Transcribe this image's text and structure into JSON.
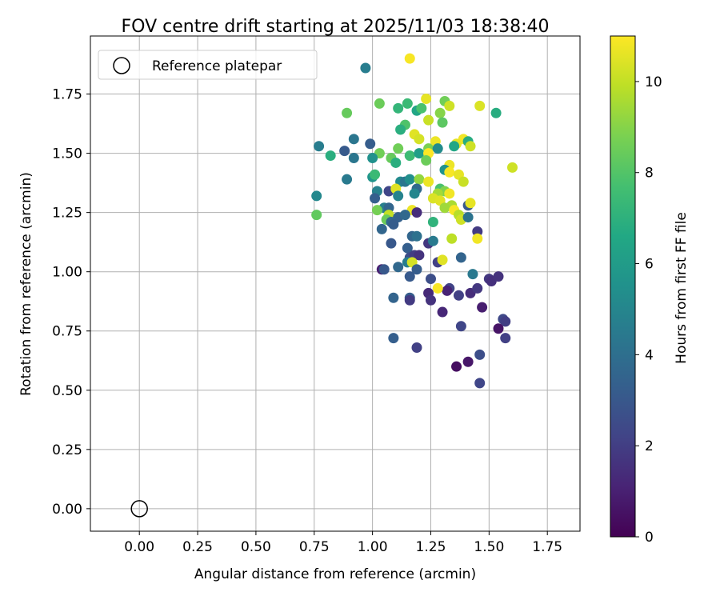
{
  "chart_data": {
    "type": "scatter",
    "title": "FOV centre drift starting at 2025/11/03 18:38:40",
    "xlabel": "Angular distance from reference (arcmin)",
    "ylabel": "Rotation from reference (arcmin)",
    "xlim": [
      -0.21,
      1.89
    ],
    "ylim": [
      -0.095,
      1.995
    ],
    "xticks": [
      "0.00",
      "0.25",
      "0.50",
      "0.75",
      "1.00",
      "1.25",
      "1.50",
      "1.75"
    ],
    "yticks": [
      "0.00",
      "0.25",
      "0.50",
      "0.75",
      "1.00",
      "1.25",
      "1.50",
      "1.75"
    ],
    "grid": true,
    "legend": {
      "location": "upper-left",
      "entries": [
        "Reference platepar"
      ]
    },
    "reference_point": {
      "x": 0.0,
      "y": 0.0
    },
    "colorbar": {
      "label": "Hours from first FF file",
      "min": 0,
      "max": 11,
      "ticks": [
        "0",
        "2",
        "4",
        "6",
        "8",
        "10"
      ],
      "colormap": "viridis"
    },
    "points": [
      {
        "x": 1.16,
        "y": 1.9,
        "h": 10.9
      },
      {
        "x": 0.97,
        "y": 1.86,
        "h": 4.6
      },
      {
        "x": 1.23,
        "y": 1.73,
        "h": 10.6
      },
      {
        "x": 1.46,
        "y": 1.7,
        "h": 10.4
      },
      {
        "x": 1.03,
        "y": 1.71,
        "h": 8.5
      },
      {
        "x": 1.15,
        "y": 1.71,
        "h": 7.4
      },
      {
        "x": 1.11,
        "y": 1.69,
        "h": 7.2
      },
      {
        "x": 1.31,
        "y": 1.72,
        "h": 8.6
      },
      {
        "x": 1.53,
        "y": 1.67,
        "h": 6.8
      },
      {
        "x": 0.89,
        "y": 1.67,
        "h": 8.4
      },
      {
        "x": 1.19,
        "y": 1.68,
        "h": 6.5
      },
      {
        "x": 1.29,
        "y": 1.67,
        "h": 9.0
      },
      {
        "x": 1.33,
        "y": 1.7,
        "h": 10.2
      },
      {
        "x": 1.21,
        "y": 1.69,
        "h": 7.8
      },
      {
        "x": 1.24,
        "y": 1.64,
        "h": 10.1
      },
      {
        "x": 1.3,
        "y": 1.63,
        "h": 8.2
      },
      {
        "x": 1.14,
        "y": 1.62,
        "h": 7.9
      },
      {
        "x": 1.12,
        "y": 1.6,
        "h": 6.9
      },
      {
        "x": 1.18,
        "y": 1.58,
        "h": 10.5
      },
      {
        "x": 1.2,
        "y": 1.56,
        "h": 10.3
      },
      {
        "x": 0.92,
        "y": 1.56,
        "h": 4.3
      },
      {
        "x": 1.27,
        "y": 1.55,
        "h": 10.7
      },
      {
        "x": 1.39,
        "y": 1.56,
        "h": 10.8
      },
      {
        "x": 1.41,
        "y": 1.55,
        "h": 6.8
      },
      {
        "x": 0.77,
        "y": 1.53,
        "h": 4.6
      },
      {
        "x": 0.99,
        "y": 1.54,
        "h": 3.2
      },
      {
        "x": 1.36,
        "y": 1.54,
        "h": 10.6
      },
      {
        "x": 1.11,
        "y": 1.52,
        "h": 8.6
      },
      {
        "x": 1.24,
        "y": 1.52,
        "h": 8.8
      },
      {
        "x": 1.28,
        "y": 1.52,
        "h": 5.3
      },
      {
        "x": 1.35,
        "y": 1.53,
        "h": 6.5
      },
      {
        "x": 1.42,
        "y": 1.53,
        "h": 10.2
      },
      {
        "x": 0.88,
        "y": 1.51,
        "h": 3.1
      },
      {
        "x": 1.03,
        "y": 1.5,
        "h": 8.6
      },
      {
        "x": 0.82,
        "y": 1.49,
        "h": 6.9
      },
      {
        "x": 1.16,
        "y": 1.49,
        "h": 7.5
      },
      {
        "x": 1.2,
        "y": 1.5,
        "h": 6.1
      },
      {
        "x": 1.24,
        "y": 1.5,
        "h": 11.0
      },
      {
        "x": 1.0,
        "y": 1.48,
        "h": 5.5
      },
      {
        "x": 1.08,
        "y": 1.48,
        "h": 8.4
      },
      {
        "x": 0.92,
        "y": 1.48,
        "h": 4.3
      },
      {
        "x": 1.1,
        "y": 1.46,
        "h": 6.9
      },
      {
        "x": 1.23,
        "y": 1.47,
        "h": 8.5
      },
      {
        "x": 1.33,
        "y": 1.45,
        "h": 10.7
      },
      {
        "x": 1.6,
        "y": 1.44,
        "h": 10.2
      },
      {
        "x": 1.31,
        "y": 1.43,
        "h": 5.6
      },
      {
        "x": 1.33,
        "y": 1.42,
        "h": 10.9
      },
      {
        "x": 1.37,
        "y": 1.41,
        "h": 10.6
      },
      {
        "x": 1.0,
        "y": 1.4,
        "h": 5.7
      },
      {
        "x": 1.01,
        "y": 1.41,
        "h": 7.4
      },
      {
        "x": 0.89,
        "y": 1.39,
        "h": 4.5
      },
      {
        "x": 1.12,
        "y": 1.38,
        "h": 5.2
      },
      {
        "x": 1.14,
        "y": 1.38,
        "h": 4.3
      },
      {
        "x": 1.16,
        "y": 1.39,
        "h": 5.4
      },
      {
        "x": 1.2,
        "y": 1.39,
        "h": 9.2
      },
      {
        "x": 1.24,
        "y": 1.38,
        "h": 10.7
      },
      {
        "x": 1.29,
        "y": 1.35,
        "h": 7.8
      },
      {
        "x": 1.31,
        "y": 1.34,
        "h": 8.9
      },
      {
        "x": 1.39,
        "y": 1.38,
        "h": 10.1
      },
      {
        "x": 1.02,
        "y": 1.34,
        "h": 4.8
      },
      {
        "x": 1.07,
        "y": 1.34,
        "h": 2.3
      },
      {
        "x": 1.1,
        "y": 1.35,
        "h": 10.5
      },
      {
        "x": 1.19,
        "y": 1.35,
        "h": 3.8
      },
      {
        "x": 1.28,
        "y": 1.33,
        "h": 9.5
      },
      {
        "x": 1.33,
        "y": 1.33,
        "h": 10.8
      },
      {
        "x": 1.01,
        "y": 1.31,
        "h": 3.3
      },
      {
        "x": 1.11,
        "y": 1.32,
        "h": 4.9
      },
      {
        "x": 1.18,
        "y": 1.33,
        "h": 5.0
      },
      {
        "x": 1.26,
        "y": 1.31,
        "h": 10.4
      },
      {
        "x": 1.29,
        "y": 1.3,
        "h": 10.5
      },
      {
        "x": 0.76,
        "y": 1.32,
        "h": 5.1
      },
      {
        "x": 1.34,
        "y": 1.28,
        "h": 9.6
      },
      {
        "x": 1.41,
        "y": 1.28,
        "h": 3.0
      },
      {
        "x": 1.42,
        "y": 1.29,
        "h": 10.6
      },
      {
        "x": 1.05,
        "y": 1.27,
        "h": 4.7
      },
      {
        "x": 1.07,
        "y": 1.27,
        "h": 3.6
      },
      {
        "x": 1.17,
        "y": 1.26,
        "h": 10.7
      },
      {
        "x": 1.19,
        "y": 1.25,
        "h": 1.4
      },
      {
        "x": 1.31,
        "y": 1.27,
        "h": 9.4
      },
      {
        "x": 1.35,
        "y": 1.26,
        "h": 10.9
      },
      {
        "x": 1.02,
        "y": 1.26,
        "h": 8.7
      },
      {
        "x": 1.07,
        "y": 1.24,
        "h": 10.0
      },
      {
        "x": 1.11,
        "y": 1.23,
        "h": 3.4
      },
      {
        "x": 1.14,
        "y": 1.24,
        "h": 3.7
      },
      {
        "x": 1.37,
        "y": 1.24,
        "h": 9.8
      },
      {
        "x": 1.38,
        "y": 1.22,
        "h": 10.2
      },
      {
        "x": 1.41,
        "y": 1.23,
        "h": 4.2
      },
      {
        "x": 0.76,
        "y": 1.24,
        "h": 8.3
      },
      {
        "x": 1.06,
        "y": 1.22,
        "h": 8.5
      },
      {
        "x": 1.08,
        "y": 1.21,
        "h": 3.7
      },
      {
        "x": 1.26,
        "y": 1.21,
        "h": 7.1
      },
      {
        "x": 1.04,
        "y": 1.18,
        "h": 3.6
      },
      {
        "x": 1.09,
        "y": 1.2,
        "h": 3.2
      },
      {
        "x": 1.45,
        "y": 1.17,
        "h": 1.9
      },
      {
        "x": 1.17,
        "y": 1.15,
        "h": 3.6
      },
      {
        "x": 1.19,
        "y": 1.15,
        "h": 4.1
      },
      {
        "x": 1.34,
        "y": 1.14,
        "h": 9.9
      },
      {
        "x": 1.45,
        "y": 1.14,
        "h": 10.8
      },
      {
        "x": 1.08,
        "y": 1.12,
        "h": 3.0
      },
      {
        "x": 1.24,
        "y": 1.12,
        "h": 1.8
      },
      {
        "x": 1.26,
        "y": 1.13,
        "h": 4.5
      },
      {
        "x": 1.15,
        "y": 1.1,
        "h": 3.3
      },
      {
        "x": 1.16,
        "y": 1.06,
        "h": 2.6
      },
      {
        "x": 1.18,
        "y": 1.07,
        "h": 2.0
      },
      {
        "x": 1.2,
        "y": 1.07,
        "h": 1.6
      },
      {
        "x": 1.38,
        "y": 1.06,
        "h": 3.5
      },
      {
        "x": 1.15,
        "y": 1.04,
        "h": 4.6
      },
      {
        "x": 1.17,
        "y": 1.04,
        "h": 10.3
      },
      {
        "x": 1.28,
        "y": 1.04,
        "h": 2.1
      },
      {
        "x": 1.3,
        "y": 1.05,
        "h": 10.5
      },
      {
        "x": 1.04,
        "y": 1.01,
        "h": 1.0
      },
      {
        "x": 1.05,
        "y": 1.01,
        "h": 3.0
      },
      {
        "x": 1.11,
        "y": 1.02,
        "h": 3.7
      },
      {
        "x": 1.19,
        "y": 1.01,
        "h": 3.2
      },
      {
        "x": 1.43,
        "y": 0.99,
        "h": 4.4
      },
      {
        "x": 1.16,
        "y": 0.98,
        "h": 3.1
      },
      {
        "x": 1.25,
        "y": 0.97,
        "h": 2.6
      },
      {
        "x": 1.5,
        "y": 0.97,
        "h": 1.8
      },
      {
        "x": 1.51,
        "y": 0.96,
        "h": 1.5
      },
      {
        "x": 1.54,
        "y": 0.98,
        "h": 1.6
      },
      {
        "x": 1.33,
        "y": 0.93,
        "h": 2.2
      },
      {
        "x": 1.32,
        "y": 0.92,
        "h": 1.1
      },
      {
        "x": 1.28,
        "y": 0.93,
        "h": 10.9
      },
      {
        "x": 1.24,
        "y": 0.91,
        "h": 1.3
      },
      {
        "x": 1.37,
        "y": 0.9,
        "h": 2.1
      },
      {
        "x": 1.42,
        "y": 0.91,
        "h": 1.4
      },
      {
        "x": 1.45,
        "y": 0.93,
        "h": 1.8
      },
      {
        "x": 1.09,
        "y": 0.89,
        "h": 3.5
      },
      {
        "x": 1.16,
        "y": 0.89,
        "h": 3.2
      },
      {
        "x": 1.16,
        "y": 0.88,
        "h": 1.9
      },
      {
        "x": 1.25,
        "y": 0.88,
        "h": 1.6
      },
      {
        "x": 1.47,
        "y": 0.85,
        "h": 0.9
      },
      {
        "x": 1.3,
        "y": 0.83,
        "h": 1.2
      },
      {
        "x": 1.56,
        "y": 0.8,
        "h": 2.4
      },
      {
        "x": 1.57,
        "y": 0.79,
        "h": 2.0
      },
      {
        "x": 1.38,
        "y": 0.77,
        "h": 2.3
      },
      {
        "x": 1.54,
        "y": 0.76,
        "h": 0.6
      },
      {
        "x": 1.09,
        "y": 0.72,
        "h": 3.3
      },
      {
        "x": 1.57,
        "y": 0.72,
        "h": 2.1
      },
      {
        "x": 1.19,
        "y": 0.68,
        "h": 2.1
      },
      {
        "x": 1.46,
        "y": 0.65,
        "h": 2.6
      },
      {
        "x": 1.41,
        "y": 0.62,
        "h": 0.7
      },
      {
        "x": 1.36,
        "y": 0.6,
        "h": 0.4
      },
      {
        "x": 1.46,
        "y": 0.53,
        "h": 2.3
      }
    ]
  }
}
